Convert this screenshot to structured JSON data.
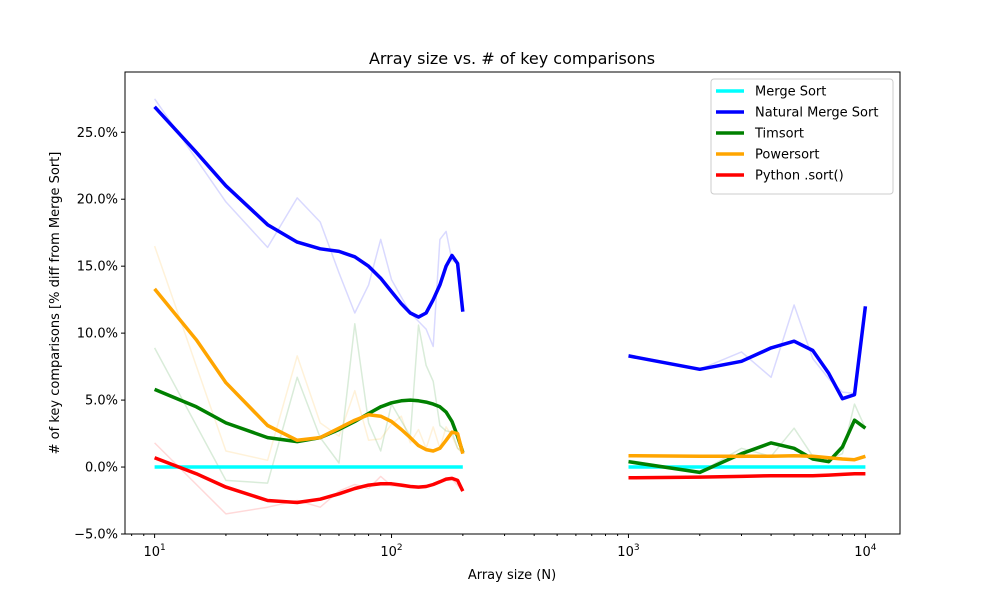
{
  "chart_data": {
    "type": "line",
    "title": "Array size vs. # of key comparisons",
    "xlabel": "Array size (N)",
    "ylabel": "# of key comparisons [% diff from Merge Sort]",
    "x_scale": "log",
    "xlim": [
      7.5,
      14000
    ],
    "ylim": [
      -5.0,
      29.5
    ],
    "grid": false,
    "legend_position": "top-right",
    "x_ticks": [
      {
        "value": 10,
        "base": "10",
        "exp": "1"
      },
      {
        "value": 100,
        "base": "10",
        "exp": "2"
      },
      {
        "value": 1000,
        "base": "10",
        "exp": "3"
      },
      {
        "value": 10000,
        "base": "10",
        "exp": "4"
      }
    ],
    "y_ticks": [
      {
        "value": -5,
        "label": "−5.0%"
      },
      {
        "value": 0,
        "label": "0.0%"
      },
      {
        "value": 5,
        "label": "5.0%"
      },
      {
        "value": 10,
        "label": "10.0%"
      },
      {
        "value": 15,
        "label": "15.0%"
      },
      {
        "value": 20,
        "label": "20.0%"
      },
      {
        "value": 25,
        "label": "25.0%"
      }
    ],
    "series": [
      {
        "name": "Merge Sort",
        "color": "#00ffff",
        "raw": [],
        "smooth_segments": [
          [
            [
              10,
              0
            ],
            [
              200,
              0
            ]
          ],
          [
            [
              1000,
              0
            ],
            [
              10000,
              0
            ]
          ]
        ]
      },
      {
        "name": "Natural Merge Sort",
        "color": "#0000ff",
        "raw": [
          [
            [
              10,
              27.5
            ],
            [
              20,
              19.8
            ],
            [
              30,
              16.4
            ],
            [
              40,
              20.1
            ],
            [
              50,
              18.3
            ],
            [
              60,
              14.5
            ],
            [
              70,
              11.5
            ],
            [
              80,
              13.6
            ],
            [
              90,
              17.0
            ],
            [
              100,
              14.0
            ],
            [
              120,
              11.5
            ],
            [
              140,
              10.3
            ],
            [
              150,
              9.0
            ],
            [
              160,
              17.0
            ],
            [
              170,
              17.6
            ],
            [
              180,
              15.4
            ],
            [
              190,
              15.3
            ],
            [
              200,
              11.7
            ]
          ],
          [
            [
              1000,
              8.4
            ],
            [
              2000,
              7.3
            ],
            [
              3000,
              8.6
            ],
            [
              4000,
              6.7
            ],
            [
              5000,
              12.1
            ],
            [
              6000,
              8.1
            ],
            [
              7000,
              6.6
            ],
            [
              8000,
              5.6
            ],
            [
              9000,
              5.5
            ],
            [
              10000,
              11.6
            ]
          ]
        ],
        "smooth_segments": [
          [
            [
              10,
              26.9
            ],
            [
              15,
              23.5
            ],
            [
              20,
              21.0
            ],
            [
              30,
              18.1
            ],
            [
              40,
              16.8
            ],
            [
              50,
              16.3
            ],
            [
              60,
              16.1
            ],
            [
              70,
              15.7
            ],
            [
              80,
              15.0
            ],
            [
              90,
              14.1
            ],
            [
              100,
              13.1
            ],
            [
              110,
              12.2
            ],
            [
              120,
              11.5
            ],
            [
              130,
              11.2
            ],
            [
              140,
              11.5
            ],
            [
              150,
              12.5
            ],
            [
              160,
              13.6
            ],
            [
              170,
              15.0
            ],
            [
              180,
              15.8
            ],
            [
              190,
              15.2
            ],
            [
              200,
              11.6
            ]
          ],
          [
            [
              1000,
              8.3
            ],
            [
              2000,
              7.3
            ],
            [
              3000,
              7.9
            ],
            [
              4000,
              8.9
            ],
            [
              5000,
              9.4
            ],
            [
              6000,
              8.7
            ],
            [
              7000,
              7.0
            ],
            [
              8000,
              5.1
            ],
            [
              9000,
              5.4
            ],
            [
              10000,
              12.0
            ]
          ]
        ]
      },
      {
        "name": "Timsort",
        "color": "#008000",
        "raw": [
          [
            [
              10,
              8.9
            ],
            [
              20,
              -1.0
            ],
            [
              30,
              -1.2
            ],
            [
              40,
              6.7
            ],
            [
              50,
              2.2
            ],
            [
              60,
              0.3
            ],
            [
              70,
              10.7
            ],
            [
              80,
              3.3
            ],
            [
              90,
              1.2
            ],
            [
              100,
              4.7
            ],
            [
              120,
              2.3
            ],
            [
              130,
              10.6
            ],
            [
              140,
              7.6
            ],
            [
              150,
              6.4
            ],
            [
              160,
              3.1
            ],
            [
              170,
              2.7
            ],
            [
              180,
              2.6
            ],
            [
              190,
              1.4
            ],
            [
              200,
              1.1
            ]
          ],
          [
            [
              1000,
              0.5
            ],
            [
              2000,
              -0.4
            ],
            [
              3000,
              1.4
            ],
            [
              4000,
              0.8
            ],
            [
              5000,
              2.9
            ],
            [
              6000,
              0.8
            ],
            [
              7000,
              0.6
            ],
            [
              8000,
              1.0
            ],
            [
              9000,
              4.7
            ],
            [
              10000,
              2.9
            ]
          ]
        ],
        "smooth_segments": [
          [
            [
              10,
              5.8
            ],
            [
              15,
              4.5
            ],
            [
              20,
              3.3
            ],
            [
              30,
              2.2
            ],
            [
              40,
              1.9
            ],
            [
              50,
              2.2
            ],
            [
              60,
              2.8
            ],
            [
              70,
              3.4
            ],
            [
              80,
              4.0
            ],
            [
              90,
              4.5
            ],
            [
              100,
              4.8
            ],
            [
              110,
              4.95
            ],
            [
              120,
              5.0
            ],
            [
              130,
              4.95
            ],
            [
              140,
              4.85
            ],
            [
              150,
              4.7
            ],
            [
              160,
              4.5
            ],
            [
              170,
              4.1
            ],
            [
              180,
              3.4
            ],
            [
              190,
              2.3
            ],
            [
              200,
              1.1
            ]
          ],
          [
            [
              1000,
              0.4
            ],
            [
              2000,
              -0.4
            ],
            [
              3000,
              1.0
            ],
            [
              4000,
              1.8
            ],
            [
              5000,
              1.4
            ],
            [
              6000,
              0.6
            ],
            [
              7000,
              0.4
            ],
            [
              8000,
              1.5
            ],
            [
              9000,
              3.5
            ],
            [
              10000,
              2.9
            ]
          ]
        ]
      },
      {
        "name": "Powersort",
        "color": "#ffa500",
        "raw": [
          [
            [
              10,
              16.5
            ],
            [
              20,
              1.2
            ],
            [
              30,
              0.5
            ],
            [
              40,
              8.3
            ],
            [
              50,
              3.3
            ],
            [
              60,
              2.3
            ],
            [
              70,
              5.7
            ],
            [
              80,
              2.0
            ],
            [
              90,
              2.1
            ],
            [
              100,
              3.2
            ],
            [
              110,
              3.8
            ],
            [
              120,
              1.8
            ],
            [
              130,
              2.8
            ],
            [
              140,
              1.4
            ],
            [
              150,
              3.0
            ],
            [
              160,
              1.4
            ],
            [
              170,
              3.0
            ],
            [
              180,
              2.3
            ],
            [
              190,
              1.4
            ],
            [
              200,
              1.0
            ]
          ],
          [
            [
              1000,
              0.8
            ],
            [
              2000,
              0.75
            ],
            [
              3000,
              0.7
            ],
            [
              4000,
              0.9
            ],
            [
              5000,
              0.8
            ],
            [
              6000,
              0.7
            ],
            [
              7000,
              0.6
            ],
            [
              8000,
              0.55
            ],
            [
              9000,
              0.5
            ],
            [
              10000,
              0.8
            ]
          ]
        ],
        "smooth_segments": [
          [
            [
              10,
              13.3
            ],
            [
              15,
              9.5
            ],
            [
              20,
              6.3
            ],
            [
              30,
              3.1
            ],
            [
              40,
              2.0
            ],
            [
              50,
              2.2
            ],
            [
              60,
              2.9
            ],
            [
              70,
              3.5
            ],
            [
              80,
              3.9
            ],
            [
              90,
              3.8
            ],
            [
              100,
              3.4
            ],
            [
              110,
              2.8
            ],
            [
              120,
              2.2
            ],
            [
              130,
              1.6
            ],
            [
              140,
              1.3
            ],
            [
              150,
              1.2
            ],
            [
              160,
              1.4
            ],
            [
              170,
              2.0
            ],
            [
              180,
              2.6
            ],
            [
              190,
              2.5
            ],
            [
              200,
              1.0
            ]
          ],
          [
            [
              1000,
              0.85
            ],
            [
              2000,
              0.8
            ],
            [
              3000,
              0.8
            ],
            [
              4000,
              0.8
            ],
            [
              5000,
              0.85
            ],
            [
              6000,
              0.8
            ],
            [
              7000,
              0.7
            ],
            [
              8000,
              0.6
            ],
            [
              9000,
              0.55
            ],
            [
              10000,
              0.8
            ]
          ]
        ]
      },
      {
        "name": "Python .sort()",
        "color": "#ff0000",
        "raw": [
          [
            [
              10,
              1.8
            ],
            [
              20,
              -3.5
            ],
            [
              30,
              -3.0
            ],
            [
              40,
              -2.5
            ],
            [
              50,
              -3.0
            ],
            [
              60,
              -1.8
            ],
            [
              70,
              -1.3
            ],
            [
              80,
              -1.6
            ],
            [
              90,
              -0.7
            ],
            [
              100,
              -1.4
            ],
            [
              120,
              -1.5
            ],
            [
              140,
              -1.4
            ],
            [
              160,
              -1.1
            ],
            [
              180,
              -0.9
            ],
            [
              200,
              -1.8
            ]
          ],
          [
            [
              1000,
              -0.8
            ],
            [
              2000,
              -0.75
            ],
            [
              3000,
              -0.7
            ],
            [
              4000,
              -0.65
            ],
            [
              5000,
              -0.65
            ],
            [
              6000,
              -0.6
            ],
            [
              7000,
              -0.6
            ],
            [
              8000,
              -0.55
            ],
            [
              9000,
              -0.5
            ],
            [
              10000,
              -0.5
            ]
          ]
        ],
        "smooth_segments": [
          [
            [
              10,
              0.7
            ],
            [
              15,
              -0.5
            ],
            [
              20,
              -1.5
            ],
            [
              30,
              -2.5
            ],
            [
              40,
              -2.65
            ],
            [
              50,
              -2.4
            ],
            [
              60,
              -2.0
            ],
            [
              70,
              -1.6
            ],
            [
              80,
              -1.35
            ],
            [
              90,
              -1.25
            ],
            [
              100,
              -1.25
            ],
            [
              110,
              -1.35
            ],
            [
              120,
              -1.45
            ],
            [
              130,
              -1.5
            ],
            [
              140,
              -1.45
            ],
            [
              150,
              -1.3
            ],
            [
              160,
              -1.1
            ],
            [
              170,
              -0.9
            ],
            [
              180,
              -0.85
            ],
            [
              190,
              -1.0
            ],
            [
              200,
              -1.8
            ]
          ],
          [
            [
              1000,
              -0.8
            ],
            [
              2000,
              -0.75
            ],
            [
              3000,
              -0.7
            ],
            [
              4000,
              -0.65
            ],
            [
              5000,
              -0.65
            ],
            [
              6000,
              -0.65
            ],
            [
              7000,
              -0.6
            ],
            [
              8000,
              -0.55
            ],
            [
              9000,
              -0.5
            ],
            [
              10000,
              -0.5
            ]
          ]
        ]
      }
    ]
  }
}
